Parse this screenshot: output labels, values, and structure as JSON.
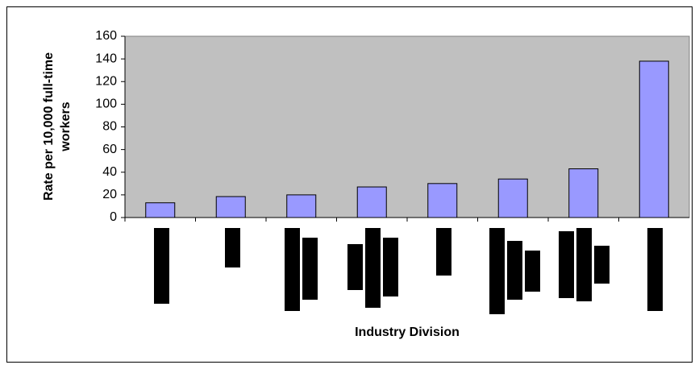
{
  "chart_data": {
    "type": "bar",
    "ylabel": "Rate per 10,000 full-time workers",
    "xlabel": "Industry Division",
    "categories": [
      null,
      null,
      null,
      null,
      null,
      null,
      null,
      null
    ],
    "values": [
      13,
      18.5,
      20,
      27,
      30,
      34,
      43,
      138
    ],
    "color": "#9999ff",
    "ylim": [
      0,
      160
    ],
    "yticks": [
      0,
      20,
      40,
      60,
      80,
      100,
      120,
      140,
      160
    ]
  }
}
